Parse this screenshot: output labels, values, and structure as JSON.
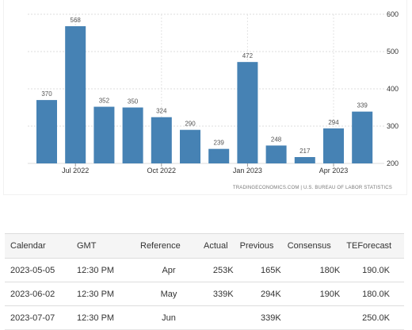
{
  "chart_data": {
    "type": "bar",
    "categories": [
      "Jun 2022",
      "Jul 2022",
      "Aug 2022",
      "Sep 2022",
      "Oct 2022",
      "Nov 2022",
      "Dec 2022",
      "Jan 2023",
      "Feb 2023",
      "Mar 2023",
      "Apr 2023",
      "May 2023"
    ],
    "values": [
      370,
      568,
      352,
      350,
      324,
      290,
      239,
      472,
      248,
      217,
      294,
      339
    ],
    "x_tick_labels": [
      {
        "index": 1,
        "label": "Jul 2022"
      },
      {
        "index": 4,
        "label": "Oct 2022"
      },
      {
        "index": 7,
        "label": "Jan 2023"
      },
      {
        "index": 10,
        "label": "Apr 2023"
      }
    ],
    "y_ticks": [
      200,
      300,
      400,
      500,
      600
    ],
    "ylim": [
      200,
      600
    ],
    "y_axis_position": "right",
    "grid": true,
    "bar_color": "#4682b4",
    "source": "TRADINGECONOMICS.COM | U.S. BUREAU OF LABOR STATISTICS"
  },
  "table": {
    "headers": [
      "Calendar",
      "GMT",
      "Reference",
      "Actual",
      "Previous",
      "Consensus",
      "TEForecast"
    ],
    "rows": [
      [
        "2023-05-05",
        "12:30 PM",
        "Apr",
        "253K",
        "165K",
        "180K",
        "190.0K"
      ],
      [
        "2023-06-02",
        "12:30 PM",
        "May",
        "339K",
        "294K",
        "190K",
        "180.0K"
      ],
      [
        "2023-07-07",
        "12:30 PM",
        "Jun",
        "",
        "339K",
        "",
        "250.0K"
      ]
    ]
  }
}
